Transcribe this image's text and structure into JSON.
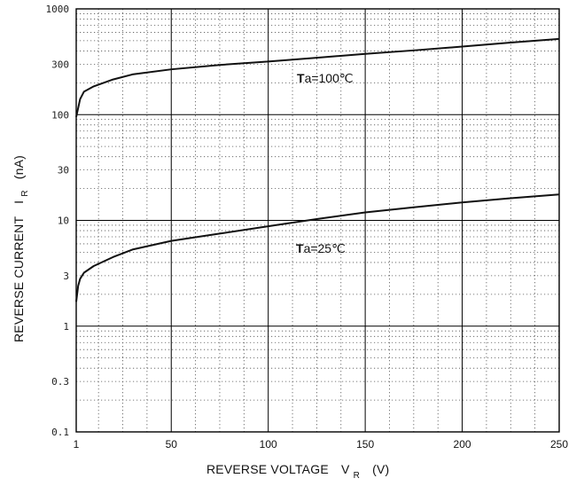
{
  "chart_data": {
    "type": "line",
    "xscale": "linear",
    "yscale": "log",
    "xlim": [
      1,
      250
    ],
    "ylim": [
      0.1,
      1000
    ],
    "xticks": [
      1,
      50,
      100,
      150,
      200,
      250
    ],
    "xtick_labels": [
      "1",
      "50",
      "100",
      "150",
      "200",
      "250"
    ],
    "yticks": [
      0.1,
      0.3,
      1,
      3,
      10,
      30,
      100,
      300,
      1000
    ],
    "ytick_labels": [
      "0.1",
      "0.3",
      "1",
      "3",
      "10",
      "30",
      "100",
      "300",
      "1000"
    ],
    "grid": true,
    "xlabel": {
      "main": "REVERSE VOLTAGE",
      "symbol": "V",
      "sub": "R",
      "unit": "(V)"
    },
    "ylabel": {
      "main": "REVERSE CURRENT",
      "symbol": "I",
      "sub": "R",
      "unit": "(nA)"
    },
    "series": [
      {
        "label_prefix": "T",
        "label_rest": "a=100℃",
        "x": [
          1,
          3,
          5,
          10,
          20,
          30,
          50,
          75,
          100,
          125,
          150,
          175,
          200,
          225,
          250
        ],
        "y": [
          95,
          140,
          165,
          185,
          215,
          240,
          268,
          295,
          318,
          345,
          375,
          405,
          440,
          480,
          520
        ]
      },
      {
        "label_prefix": "T",
        "label_rest": "a=25℃",
        "x": [
          1,
          2,
          3,
          5,
          10,
          20,
          30,
          50,
          75,
          100,
          125,
          150,
          175,
          200,
          225,
          250
        ],
        "y": [
          1.7,
          2.4,
          2.8,
          3.2,
          3.7,
          4.5,
          5.3,
          6.4,
          7.5,
          8.8,
          10.3,
          11.9,
          13.3,
          14.8,
          16.2,
          17.6
        ]
      }
    ],
    "colors": {
      "curve": "#111111",
      "major_grid": "#000000",
      "minor_grid": "#555555",
      "frame": "#000000"
    }
  }
}
